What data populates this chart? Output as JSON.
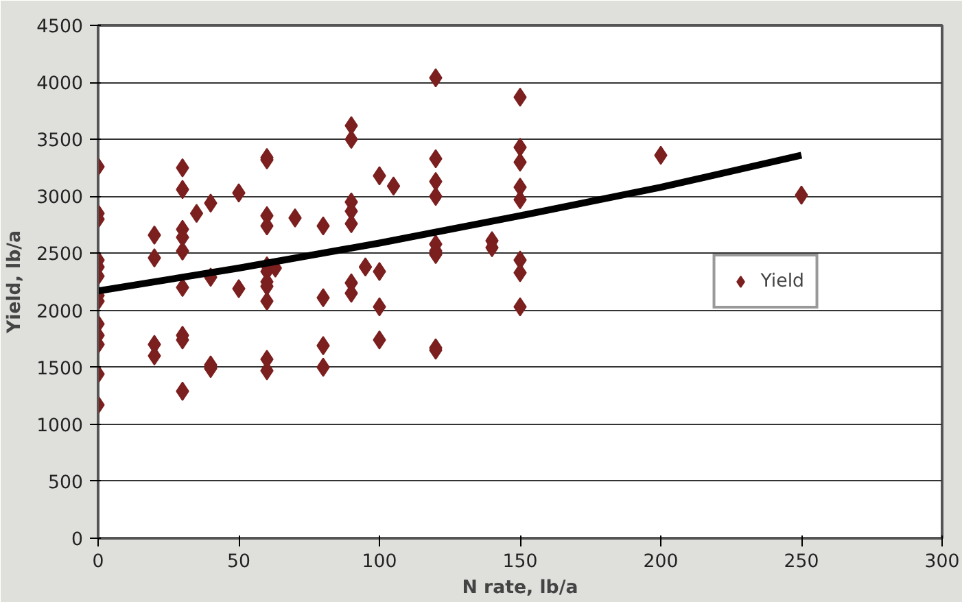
{
  "chart_data": {
    "type": "scatter",
    "xlabel": "N rate, lb/a",
    "ylabel": "Yield, lb/a",
    "xlim": [
      0,
      300
    ],
    "xticks": [
      0,
      50,
      100,
      150,
      200,
      250,
      300
    ],
    "ylim": [
      0,
      4500
    ],
    "yticks": [
      0,
      500,
      1000,
      1500,
      2000,
      2500,
      3000,
      3500,
      4000,
      4500
    ],
    "grid": "y",
    "legend": "right",
    "series": [
      {
        "name": "Yield",
        "color": "#7b1f1f",
        "marker": "diamond",
        "x": [
          0,
          0,
          0,
          0,
          0,
          0,
          0,
          0,
          0,
          0,
          0,
          0,
          0,
          20,
          20,
          20,
          20,
          30,
          30,
          30,
          30,
          30,
          30,
          30,
          30,
          30,
          35,
          40,
          40,
          40,
          40,
          50,
          50,
          60,
          60,
          60,
          60,
          60,
          60,
          60,
          60,
          60,
          60,
          60,
          63,
          70,
          80,
          80,
          80,
          80,
          90,
          90,
          90,
          90,
          90,
          90,
          90,
          95,
          100,
          100,
          100,
          100,
          105,
          120,
          120,
          120,
          120,
          120,
          120,
          120,
          120,
          120,
          140,
          140,
          150,
          150,
          150,
          150,
          150,
          150,
          150,
          150,
          200,
          250
        ],
        "values": [
          3260,
          2850,
          2800,
          2440,
          2380,
          2300,
          2130,
          2080,
          1880,
          1780,
          1700,
          1440,
          1170,
          2660,
          2460,
          1700,
          1600,
          3250,
          3060,
          2710,
          2640,
          2520,
          2200,
          1780,
          1740,
          1290,
          2850,
          2940,
          2290,
          1520,
          1490,
          3030,
          2190,
          3340,
          3320,
          2830,
          2740,
          2390,
          2340,
          2250,
          2210,
          2080,
          1570,
          1470,
          2370,
          2810,
          2740,
          2110,
          1690,
          1500,
          3620,
          3500,
          2950,
          2870,
          2760,
          2240,
          2150,
          2380,
          3180,
          2340,
          2030,
          1740,
          3090,
          4040,
          3330,
          3130,
          3000,
          2580,
          2520,
          2490,
          1670,
          1650,
          2610,
          2550,
          3870,
          3430,
          3300,
          3080,
          2970,
          2440,
          2330,
          2030,
          3360,
          3010
        ]
      },
      {
        "color": "#000000",
        "type": "line",
        "line_style": "solid",
        "x": [
          0,
          50,
          100,
          150,
          200,
          250
        ],
        "values": [
          2170,
          2370,
          2590,
          2830,
          3080,
          3360
        ]
      }
    ]
  }
}
